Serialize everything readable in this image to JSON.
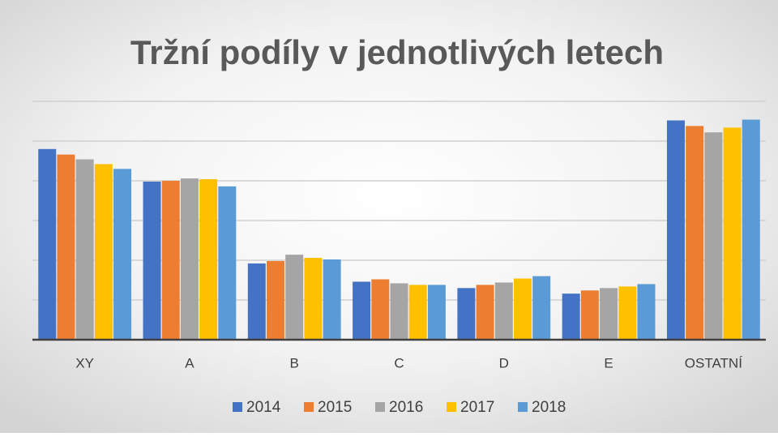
{
  "chart_data": {
    "type": "bar",
    "title": "Tržní podíly v jednotlivých letech",
    "categories": [
      "XY",
      "A",
      "B",
      "C",
      "D",
      "E",
      "OSTATNÍ"
    ],
    "series": [
      {
        "name": "2014",
        "color": "#4472c4",
        "values": [
          24.0,
          19.9,
          9.6,
          7.3,
          6.5,
          5.8,
          27.6
        ]
      },
      {
        "name": "2015",
        "color": "#ed7d31",
        "values": [
          23.3,
          20.0,
          9.9,
          7.6,
          6.9,
          6.2,
          26.9
        ]
      },
      {
        "name": "2016",
        "color": "#a5a5a5",
        "values": [
          22.7,
          20.3,
          10.7,
          7.1,
          7.2,
          6.5,
          26.1
        ]
      },
      {
        "name": "2017",
        "color": "#ffc000",
        "values": [
          22.1,
          20.2,
          10.3,
          6.9,
          7.7,
          6.7,
          26.7
        ]
      },
      {
        "name": "2018",
        "color": "#5b9bd5",
        "values": [
          21.5,
          19.3,
          10.1,
          6.9,
          8.0,
          7.0,
          27.7
        ]
      }
    ],
    "ylim": [
      0,
      30
    ],
    "yticks": [
      0,
      5,
      10,
      15,
      20,
      25,
      30
    ],
    "grid": true,
    "legend": "bottom"
  }
}
